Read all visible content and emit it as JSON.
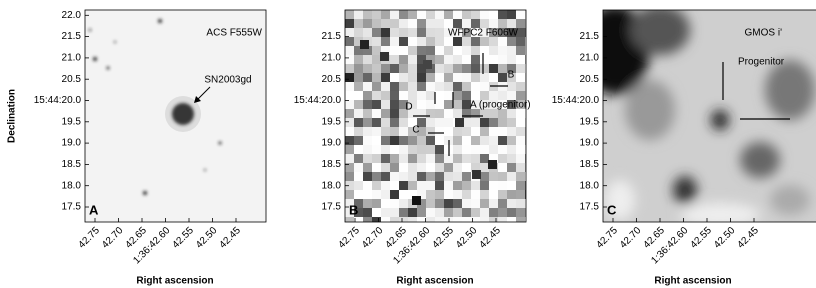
{
  "y_axis_label": "Declination",
  "panels": [
    {
      "label": "A",
      "filter": "ACS F555W",
      "annotations": [
        "SN2003gd"
      ],
      "yticks": [
        "22.0",
        "21.5",
        "21.0",
        "20.5",
        "15:44:20.0",
        "19.5",
        "19.0",
        "18.5",
        "18.0",
        "17.5"
      ],
      "xticks": [
        "42.75",
        "42.70",
        "42.65",
        "1:36:42.60",
        "42.55",
        "42.50",
        "42.45"
      ],
      "x_axis_label": "Right ascension"
    },
    {
      "label": "B",
      "filter": "WFPC2 F606W",
      "annotations": [
        "B",
        "A (progenitor)",
        "D",
        "C"
      ],
      "yticks": [
        "21.5",
        "21.0",
        "20.5",
        "15:44:20.0",
        "19.5",
        "19.0",
        "18.5",
        "18.0",
        "17.5"
      ],
      "xticks": [
        "42.75",
        "42.70",
        "42.65",
        "1:36:42.60",
        "42.55",
        "42.50",
        "42.45"
      ],
      "x_axis_label": "Right ascension"
    },
    {
      "label": "C",
      "filter": "GMOS i'",
      "annotations": [
        "Progenitor"
      ],
      "yticks": [
        "21.5",
        "21.0",
        "20.5",
        "15:44:20.0",
        "19.5",
        "19.0",
        "18.5",
        "18.0",
        "17.5"
      ],
      "xticks": [
        "42.75",
        "42.70",
        "42.65",
        "1:36:42.60",
        "42.55",
        "42.50",
        "42.45"
      ],
      "x_axis_label": "Right ascension"
    }
  ]
}
